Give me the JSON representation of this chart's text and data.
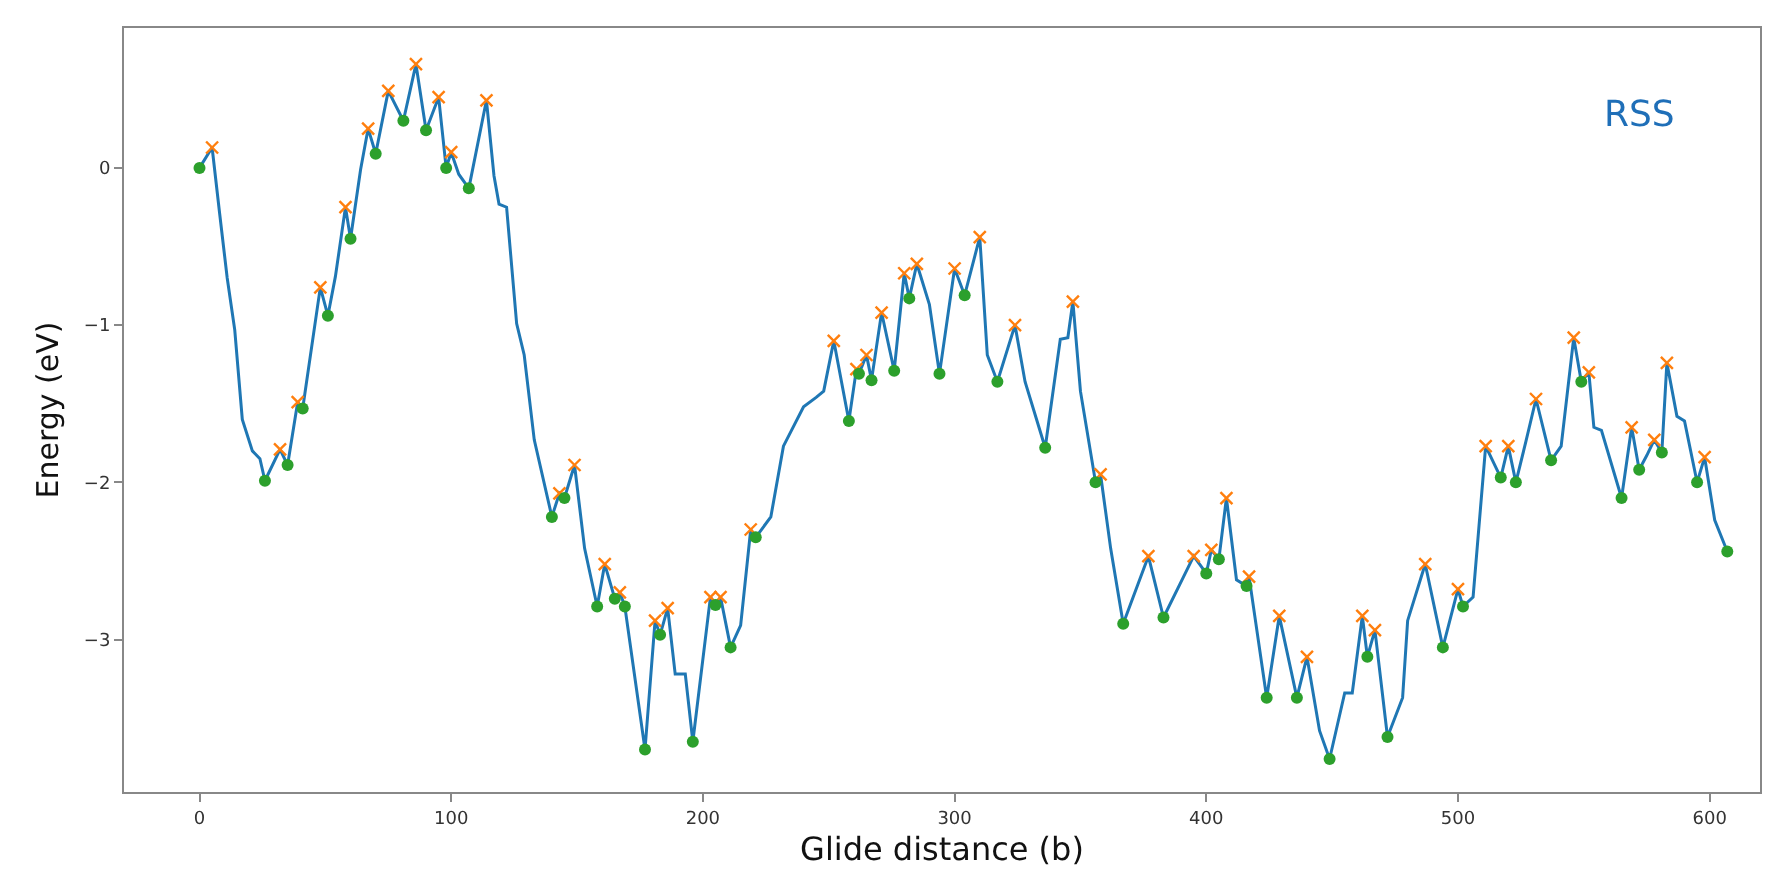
{
  "chart_data": {
    "type": "line",
    "xlabel": "Glide distance (b)",
    "ylabel": "Energy (eV)",
    "annotations": [
      "RSS"
    ],
    "xlim": [
      -30,
      620
    ],
    "ylim": [
      -3.97,
      0.89
    ],
    "xticks": [
      0,
      100,
      200,
      300,
      400,
      500,
      600
    ],
    "yticks": [
      0,
      {
        "value": -1,
        "label": "−1"
      },
      {
        "value": -2,
        "label": "−2"
      },
      {
        "value": -3,
        "label": "−3"
      }
    ],
    "series": [
      {
        "color": "#1f77b4",
        "marker": "none",
        "line_style": "solid",
        "x": [
          0,
          5,
          8,
          11,
          14,
          17,
          21,
          24,
          26,
          32,
          35,
          39,
          41,
          48,
          51,
          54,
          58,
          60,
          64,
          67,
          70,
          75,
          81,
          86,
          90,
          95,
          98,
          100,
          103,
          107,
          114,
          117,
          119,
          122,
          126,
          129,
          133,
          140,
          143,
          145,
          149,
          153,
          158,
          161,
          165,
          167,
          169,
          177,
          181,
          183,
          186,
          189,
          193,
          196,
          203,
          205,
          207,
          211,
          215,
          219,
          221,
          227,
          232,
          240,
          245,
          248,
          252,
          258,
          261,
          262,
          265,
          267,
          271,
          276,
          280,
          282,
          285,
          290,
          294,
          300,
          304,
          310,
          313,
          317,
          324,
          328,
          336,
          342,
          345,
          347,
          350,
          356,
          358,
          362,
          367,
          377,
          383,
          391,
          395,
          400,
          402,
          405,
          408,
          412,
          416,
          417,
          424,
          429,
          436,
          440,
          445,
          449,
          455,
          458,
          462,
          464,
          467,
          472,
          478,
          480,
          487,
          494,
          500,
          502,
          506,
          511,
          517,
          520,
          523,
          527,
          531,
          537,
          541,
          546,
          549,
          552,
          554,
          557,
          565,
          569,
          572,
          575,
          578,
          581,
          583,
          587,
          590,
          595,
          598,
          602,
          607
        ],
        "values": [
          0,
          0.13,
          -0.29,
          -0.7,
          -1.03,
          -1.6,
          -1.8,
          -1.85,
          -1.99,
          -1.79,
          -1.89,
          -1.49,
          -1.53,
          -0.76,
          -0.94,
          -0.69,
          -0.25,
          -0.45,
          -0.01,
          0.25,
          0.09,
          0.49,
          0.3,
          0.66,
          0.24,
          0.45,
          0.0,
          0.1,
          -0.04,
          -0.13,
          0.43,
          -0.05,
          -0.23,
          -0.25,
          -0.99,
          -1.19,
          -1.73,
          -2.22,
          -2.07,
          -2.1,
          -1.89,
          -2.42,
          -2.79,
          -2.52,
          -2.74,
          -2.7,
          -2.79,
          -3.7,
          -2.88,
          -2.97,
          -2.8,
          -3.22,
          -3.22,
          -3.65,
          -2.73,
          -2.78,
          -2.73,
          -3.05,
          -2.91,
          -2.3,
          -2.35,
          -2.22,
          -1.77,
          -1.52,
          -1.46,
          -1.42,
          -1.1,
          -1.61,
          -1.28,
          -1.31,
          -1.19,
          -1.35,
          -0.92,
          -1.29,
          -0.67,
          -0.83,
          -0.61,
          -0.87,
          -1.31,
          -0.64,
          -0.81,
          -0.44,
          -1.19,
          -1.36,
          -1.0,
          -1.36,
          -1.78,
          -1.09,
          -1.08,
          -0.85,
          -1.42,
          -2.0,
          -1.95,
          -2.42,
          -2.9,
          -2.47,
          -2.86,
          -2.6,
          -2.47,
          -2.58,
          -2.43,
          -2.49,
          -2.1,
          -2.62,
          -2.66,
          -2.6,
          -3.37,
          -2.85,
          -3.37,
          -3.11,
          -3.58,
          -3.76,
          -3.34,
          -3.34,
          -2.85,
          -3.11,
          -2.94,
          -3.62,
          -3.37,
          -2.88,
          -2.52,
          -3.05,
          -2.68,
          -2.79,
          -2.73,
          -1.77,
          -1.97,
          -1.77,
          -2.0,
          -1.74,
          -1.47,
          -1.86,
          -1.77,
          -1.08,
          -1.36,
          -1.3,
          -1.65,
          -1.67,
          -2.1,
          -1.65,
          -1.92,
          -1.83,
          -1.73,
          -1.81,
          -1.24,
          -1.58,
          -1.61,
          -2.0,
          -1.84,
          -2.24,
          -2.44
        ]
      },
      {
        "type": "scatter",
        "color": "#ff7f0e",
        "marker": "cross",
        "x": [
          5,
          32,
          39,
          48,
          58,
          67,
          75,
          86,
          95,
          100,
          114,
          143,
          149,
          161,
          167,
          181,
          186,
          203,
          207,
          219,
          252,
          261,
          265,
          271,
          280,
          285,
          300,
          310,
          324,
          347,
          358,
          377,
          395,
          402,
          408,
          417,
          429,
          440,
          462,
          467,
          487,
          500,
          511,
          520,
          531,
          546,
          552,
          569,
          578,
          583,
          598
        ],
        "values": [
          0.13,
          -1.79,
          -1.49,
          -0.76,
          -0.25,
          0.25,
          0.49,
          0.66,
          0.45,
          0.1,
          0.43,
          -2.07,
          -1.89,
          -2.52,
          -2.7,
          -2.88,
          -2.8,
          -2.73,
          -2.73,
          -2.3,
          -1.1,
          -1.28,
          -1.19,
          -0.92,
          -0.67,
          -0.61,
          -0.64,
          -0.44,
          -1.0,
          -0.85,
          -1.95,
          -2.47,
          -2.47,
          -2.43,
          -2.1,
          -2.6,
          -2.85,
          -3.11,
          -2.85,
          -2.94,
          -2.52,
          -2.68,
          -1.77,
          -1.77,
          -1.47,
          -1.08,
          -1.3,
          -1.65,
          -1.73,
          -1.24,
          -1.84
        ]
      },
      {
        "type": "scatter",
        "color": "#2ca02c",
        "marker": "circle",
        "x": [
          0,
          26,
          35,
          41,
          51,
          60,
          70,
          81,
          90,
          98,
          107,
          140,
          145,
          158,
          165,
          169,
          177,
          183,
          196,
          205,
          211,
          221,
          258,
          262,
          267,
          276,
          282,
          294,
          304,
          317,
          336,
          356,
          367,
          383,
          400,
          405,
          416,
          424,
          436,
          449,
          464,
          472,
          494,
          502,
          517,
          523,
          537,
          549,
          565,
          572,
          581,
          595,
          607
        ],
        "values": [
          0,
          -1.99,
          -1.89,
          -1.53,
          -0.94,
          -0.45,
          0.09,
          0.3,
          0.24,
          0.0,
          -0.13,
          -2.22,
          -2.1,
          -2.79,
          -2.74,
          -2.79,
          -3.7,
          -2.97,
          -3.65,
          -2.78,
          -3.05,
          -2.35,
          -1.61,
          -1.31,
          -1.35,
          -1.29,
          -0.83,
          -1.31,
          -0.81,
          -1.36,
          -1.78,
          -2.0,
          -2.9,
          -2.86,
          -2.58,
          -2.49,
          -2.66,
          -3.37,
          -3.37,
          -3.76,
          -3.11,
          -3.62,
          -3.05,
          -2.79,
          -1.97,
          -2.0,
          -1.86,
          -1.36,
          -2.1,
          -1.92,
          -1.81,
          -2.0,
          -2.44
        ]
      }
    ]
  }
}
